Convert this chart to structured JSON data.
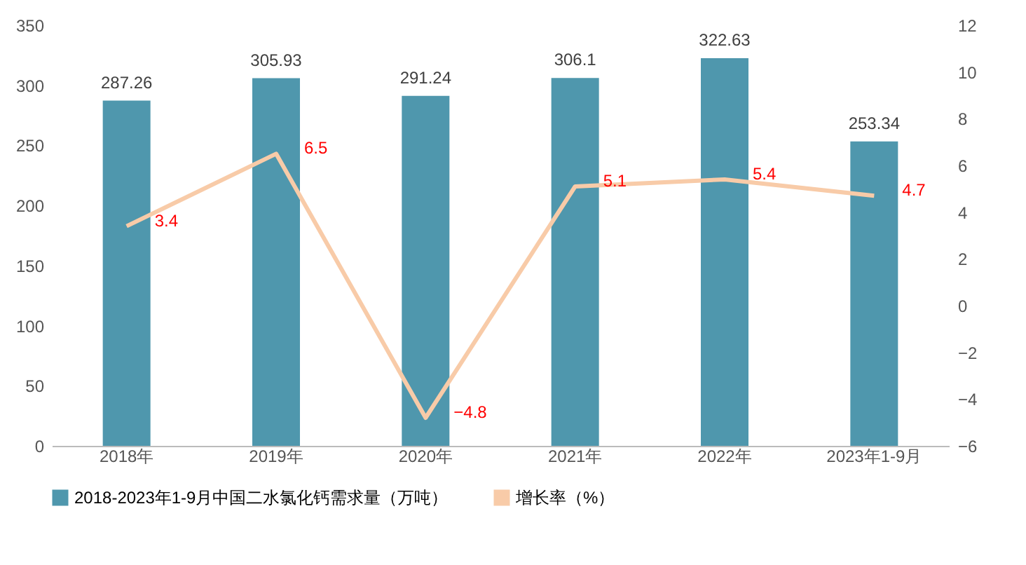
{
  "chart_data": {
    "type": "bar",
    "categories": [
      "2018年",
      "2019年",
      "2020年",
      "2021年",
      "2022年",
      "2023年1-9月"
    ],
    "series": [
      {
        "name": "2018-2023年1-9月中国二水氯化钙需求量（万吨）",
        "color": "#4f97ad",
        "values": [
          287.26,
          305.93,
          291.24,
          306.1,
          322.63,
          253.34
        ]
      },
      {
        "name": "增长率（%）",
        "type": "line",
        "axis": "y2",
        "color": "#f8cba8",
        "values": [
          3.4,
          6.5,
          -4.8,
          5.1,
          5.4,
          4.7
        ]
      }
    ],
    "ylim": [
      0,
      350
    ],
    "yticks": [
      0,
      50,
      100,
      150,
      200,
      250,
      300,
      350
    ],
    "y2lim": [
      -6,
      12
    ],
    "y2ticks": [
      -6,
      -4,
      -2,
      0,
      2,
      4,
      6,
      8,
      10,
      12
    ],
    "data_labels": true,
    "legend": "bottom",
    "grid": false,
    "marker": "none",
    "line_style": "solid"
  }
}
